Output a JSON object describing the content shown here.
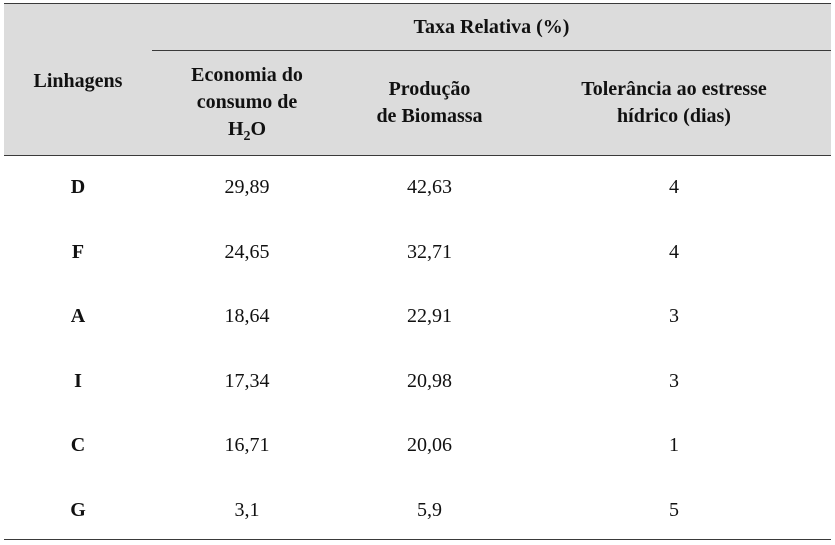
{
  "table": {
    "group_header": "Taxa Relativa (%)",
    "columns": {
      "lineage": "Linhagens",
      "water_line1": "Economia do",
      "water_line2": "consumo de",
      "water_h": "H",
      "water_sub": "2",
      "water_o": "O",
      "biomass_line1": "Produção",
      "biomass_line2": "de Biomassa",
      "tolerance_line1": "Tolerância ao estresse",
      "tolerance_line2": "hídrico (dias)"
    },
    "rows": [
      {
        "lineage": "D",
        "water": "29,89",
        "biomass": "42,63",
        "tolerance": "4"
      },
      {
        "lineage": "F",
        "water": "24,65",
        "biomass": "32,71",
        "tolerance": "4"
      },
      {
        "lineage": "A",
        "water": "18,64",
        "biomass": "22,91",
        "tolerance": "3"
      },
      {
        "lineage": "I",
        "water": "17,34",
        "biomass": "20,98",
        "tolerance": "3"
      },
      {
        "lineage": "C",
        "water": "16,71",
        "biomass": "20,06",
        "tolerance": "1"
      },
      {
        "lineage": "G",
        "water": "3,1",
        "biomass": "5,9",
        "tolerance": "5"
      }
    ]
  }
}
